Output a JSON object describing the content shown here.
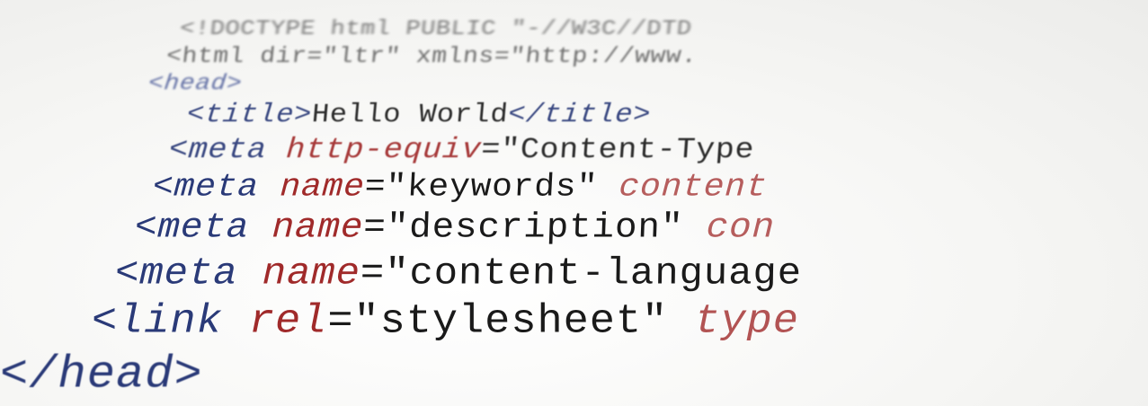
{
  "lines": [
    {
      "tokens": [
        {
          "text": "<!DOCTYPE html PUBLIC \"-//W3C//DTD ",
          "color": "#555555"
        }
      ]
    },
    {
      "tokens": [
        {
          "text": "<html dir=\"ltr\" xmlns=\"http://www.",
          "color": "#555555"
        }
      ]
    },
    {
      "tokens": [
        {
          "text": "<head>",
          "color": "#2a3a78"
        }
      ]
    },
    {
      "tokens": [
        {
          "text": "<title>",
          "color": "#2a3a78"
        },
        {
          "text": "Hello World",
          "color": "#1a1a1a"
        },
        {
          "text": "</title>",
          "color": "#2a3a78"
        }
      ]
    },
    {
      "tokens": [
        {
          "text": "<meta ",
          "color": "#2a3a78"
        },
        {
          "text": "http-equiv",
          "color": "#a02a2a"
        },
        {
          "text": "=\"Content-Type",
          "color": "#1a1a1a"
        }
      ]
    },
    {
      "tokens": [
        {
          "text": "<meta ",
          "color": "#2a3a78"
        },
        {
          "text": "name",
          "color": "#a02a2a"
        },
        {
          "text": "=\"keywords\" ",
          "color": "#1a1a1a"
        },
        {
          "text": "content",
          "color": "#a02a2a"
        }
      ]
    },
    {
      "tokens": [
        {
          "text": "<meta ",
          "color": "#2a3a78"
        },
        {
          "text": "name",
          "color": "#a02a2a"
        },
        {
          "text": "=\"description\" ",
          "color": "#1a1a1a"
        },
        {
          "text": "con",
          "color": "#a02a2a"
        }
      ]
    },
    {
      "tokens": [
        {
          "text": "<meta ",
          "color": "#2a3a78"
        },
        {
          "text": "name",
          "color": "#a02a2a"
        },
        {
          "text": "=\"content-language",
          "color": "#1a1a1a"
        }
      ]
    },
    {
      "tokens": [
        {
          "text": "<link ",
          "color": "#2a3a78"
        },
        {
          "text": "rel",
          "color": "#a02a2a"
        },
        {
          "text": "=\"stylesheet\" ",
          "color": "#1a1a1a"
        },
        {
          "text": "type",
          "color": "#a02a2a"
        }
      ]
    },
    {
      "tokens": [
        {
          "text": "</head>",
          "color": "#2a3a78"
        }
      ]
    }
  ]
}
